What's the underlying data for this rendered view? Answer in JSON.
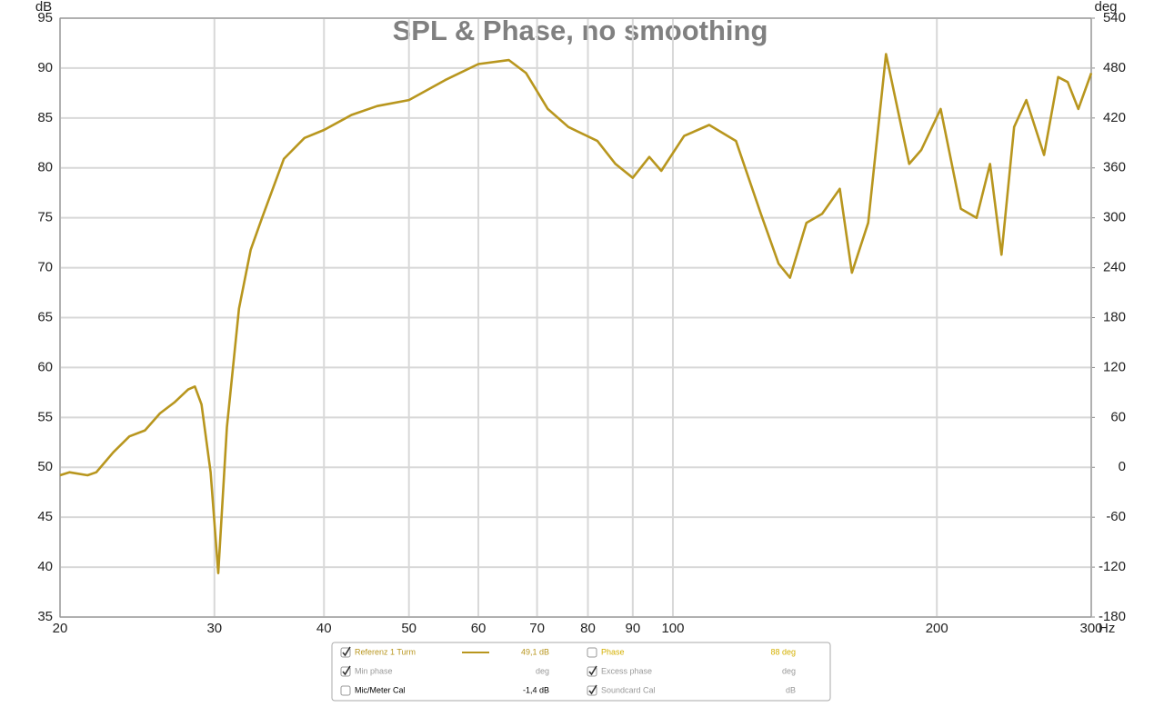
{
  "chart_data": {
    "type": "line",
    "title": "SPL & Phase, no smoothing",
    "y_label": "dB",
    "y2_label": "deg",
    "x_unit": "Hz",
    "xscale": "log",
    "grid": true,
    "xlim": [
      20,
      300
    ],
    "xticks": [
      20,
      30,
      40,
      50,
      60,
      70,
      80,
      90,
      100,
      200,
      300
    ],
    "ylim": [
      35,
      95
    ],
    "yticks": [
      35,
      40,
      45,
      50,
      55,
      60,
      65,
      70,
      75,
      80,
      85,
      90,
      95
    ],
    "y2lim": [
      -180,
      540
    ],
    "y2ticks": [
      -180,
      -120,
      -60,
      0,
      60,
      120,
      180,
      240,
      300,
      360,
      420,
      480,
      540
    ],
    "x": [
      20,
      20.5,
      21.5,
      22,
      23,
      24,
      25,
      26,
      27,
      28,
      28.5,
      29,
      29.7,
      30.3,
      31,
      32,
      33,
      34,
      36,
      38,
      40,
      43,
      46,
      50,
      55,
      60,
      65,
      68,
      72,
      76,
      82,
      86,
      90,
      94,
      97,
      103,
      110,
      118,
      126,
      132,
      136,
      142,
      148,
      155,
      160,
      167,
      175,
      186,
      192,
      202,
      213,
      222,
      230,
      237,
      245,
      253,
      265,
      275,
      282,
      290,
      300
    ],
    "series": [
      {
        "name": "Referenz 1 Turm",
        "color": "#b8961e",
        "readout": "49,1 dB",
        "checked": true,
        "values": [
          49.2,
          49.5,
          49.2,
          49.5,
          51.5,
          53.1,
          53.7,
          55.4,
          56.5,
          57.8,
          58.1,
          56.3,
          49.5,
          39.4,
          54,
          65.9,
          71.8,
          75,
          80.9,
          83,
          83.8,
          85.3,
          86.2,
          86.8,
          88.8,
          90.4,
          90.8,
          89.5,
          85.9,
          84.1,
          82.7,
          80.4,
          79,
          81.1,
          79.7,
          83.2,
          84.3,
          82.7,
          75.4,
          70.4,
          69,
          74.5,
          75.4,
          77.9,
          69.5,
          74.5,
          91.4,
          80.4,
          81.8,
          85.9,
          75.9,
          75,
          80.4,
          71.3,
          84.1,
          86.8,
          81.3,
          89.1,
          88.6,
          85.9,
          89.5
        ]
      }
    ]
  },
  "legend_panel": {
    "items": [
      {
        "label": "Phase",
        "readout": "88 deg",
        "checked": false,
        "color": "#d4b000"
      },
      {
        "label": "Min phase",
        "readout": "deg",
        "checked": true,
        "color": "#999999"
      },
      {
        "label": "Excess phase",
        "readout": "deg",
        "checked": true,
        "color": "#999999"
      },
      {
        "label": "Mic/Meter Cal",
        "readout": "-1,4 dB",
        "checked": false,
        "color": "#000000"
      },
      {
        "label": "Soundcard Cal",
        "readout": "dB",
        "checked": true,
        "color": "#999999"
      }
    ]
  }
}
